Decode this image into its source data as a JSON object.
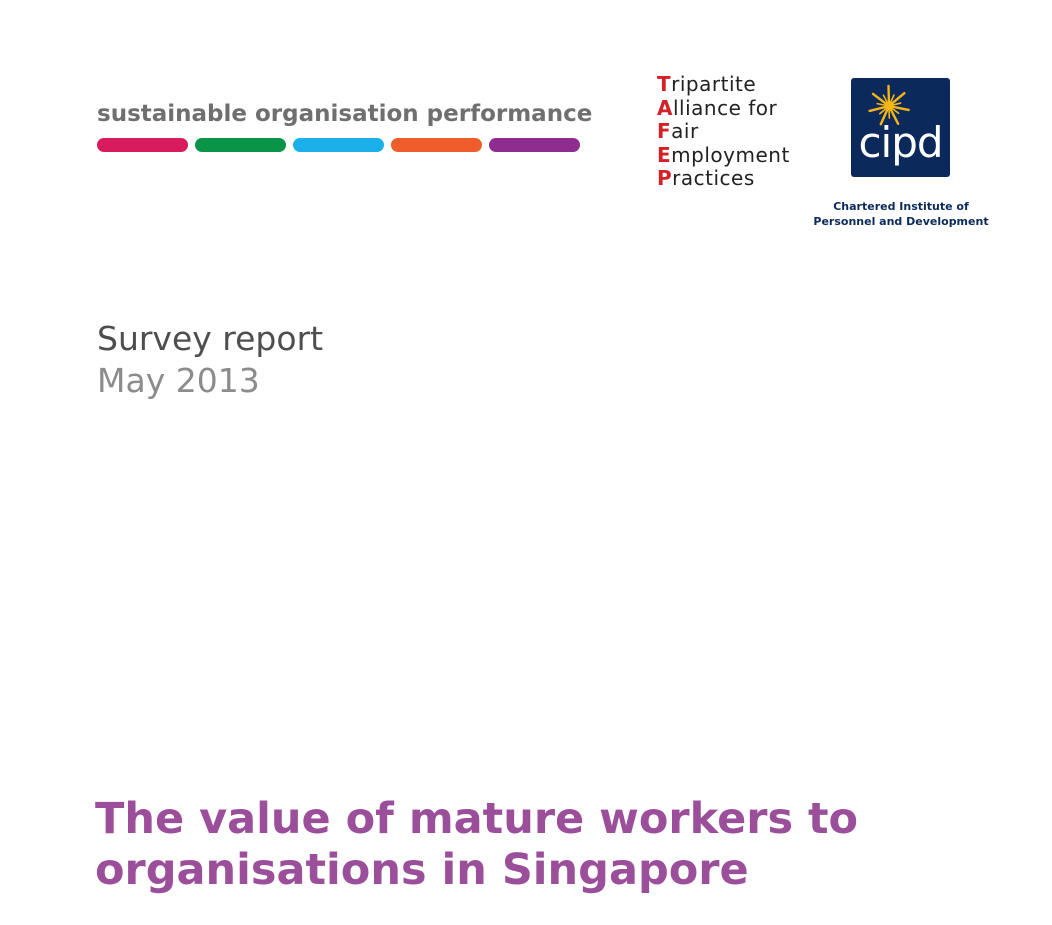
{
  "series": {
    "title": "sustainable organisation performance",
    "bar_colors": [
      "#d71b5c",
      "#0a9448",
      "#1cb0ea",
      "#ef5d2d",
      "#8e2c8f"
    ]
  },
  "tafep": {
    "lines": [
      {
        "initial": "T",
        "rest": "ripartite"
      },
      {
        "initial": "A",
        "rest": "lliance for"
      },
      {
        "initial": "F",
        "rest": "air"
      },
      {
        "initial": "E",
        "rest": "mployment"
      },
      {
        "initial": "P",
        "rest": "ractices"
      }
    ],
    "initial_color": "#d42027"
  },
  "cipd": {
    "logo_text": "cipd",
    "caption_line1": "Chartered Institute of",
    "caption_line2": "Personnel and Development",
    "box_color": "#0b2a5b",
    "star_color": "#f7b516"
  },
  "report": {
    "type": "Survey report",
    "date": "May 2013"
  },
  "title": {
    "line1": "The value of mature workers to",
    "line2": "organisations in Singapore"
  }
}
